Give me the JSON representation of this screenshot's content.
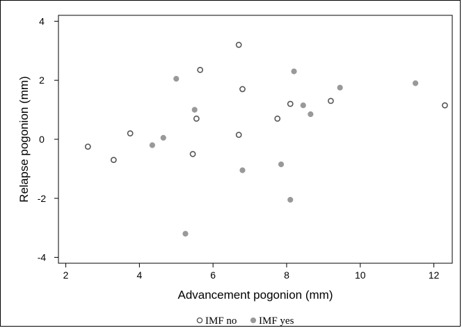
{
  "chart_data": {
    "type": "scatter",
    "xlabel": "Advancement pogonion (mm)",
    "ylabel": "Relapse pogonion (mm)",
    "xlim": [
      1.8,
      12.5
    ],
    "ylim": [
      -4.2,
      4.2
    ],
    "x_ticks": [
      2,
      4,
      6,
      8,
      10,
      12
    ],
    "y_ticks": [
      -4,
      -2,
      0,
      2,
      4
    ],
    "grid": false,
    "legend_position": "bottom-center",
    "series": [
      {
        "name": "IMF no",
        "marker": "hollow-circle",
        "color": "#555555",
        "points": [
          {
            "x": 2.6,
            "y": -0.25
          },
          {
            "x": 3.3,
            "y": -0.7
          },
          {
            "x": 3.75,
            "y": 0.2
          },
          {
            "x": 5.45,
            "y": -0.5
          },
          {
            "x": 5.55,
            "y": 0.7
          },
          {
            "x": 5.65,
            "y": 2.35
          },
          {
            "x": 6.7,
            "y": 3.2
          },
          {
            "x": 6.7,
            "y": 0.15
          },
          {
            "x": 6.8,
            "y": 1.7
          },
          {
            "x": 7.75,
            "y": 0.7
          },
          {
            "x": 8.1,
            "y": 1.2
          },
          {
            "x": 9.2,
            "y": 1.3
          },
          {
            "x": 12.3,
            "y": 1.15
          }
        ]
      },
      {
        "name": "IMF yes",
        "marker": "filled-circle",
        "color": "#999999",
        "points": [
          {
            "x": 4.35,
            "y": -0.2
          },
          {
            "x": 4.65,
            "y": 0.05
          },
          {
            "x": 5.0,
            "y": 2.05
          },
          {
            "x": 5.25,
            "y": -3.2
          },
          {
            "x": 5.5,
            "y": 1.0
          },
          {
            "x": 6.8,
            "y": -1.05
          },
          {
            "x": 7.85,
            "y": -0.85
          },
          {
            "x": 8.1,
            "y": -2.05
          },
          {
            "x": 8.2,
            "y": 2.3
          },
          {
            "x": 8.45,
            "y": 1.15
          },
          {
            "x": 8.65,
            "y": 0.85
          },
          {
            "x": 9.45,
            "y": 1.75
          },
          {
            "x": 11.5,
            "y": 1.9
          }
        ]
      }
    ]
  }
}
